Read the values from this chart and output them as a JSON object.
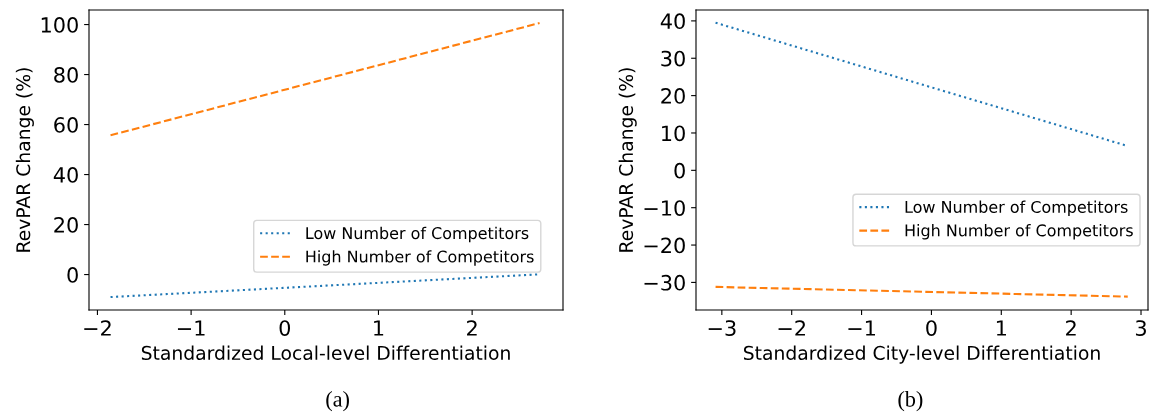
{
  "chart_data": [
    {
      "type": "line",
      "xlabel": "Standardized Local-level Differentiation",
      "ylabel": "RevPAR Change (%)",
      "annotations": [
        "(a)"
      ],
      "xlim": [
        -2.09,
        2.97
      ],
      "ylim": [
        -14.2,
        105.8
      ],
      "xticks": [
        -2,
        -1,
        0,
        1,
        2
      ],
      "yticks": [
        0,
        20,
        40,
        60,
        80,
        100
      ],
      "legend": "lower right",
      "series": [
        {
          "name": "Low Number of Competitors",
          "color": "#1f77b4",
          "line_style": "dotted",
          "x": [
            -1.86,
            2.72
          ],
          "values": [
            -9.0,
            0.1
          ]
        },
        {
          "name": "High Number of Competitors",
          "color": "#ff7f0e",
          "line_style": "dashed",
          "x": [
            -1.86,
            2.72
          ],
          "values": [
            55.7,
            100.6
          ]
        }
      ]
    },
    {
      "type": "line",
      "xlabel": "Standardized City-level Differentiation",
      "ylabel": "RevPAR Change (%)",
      "annotations": [
        "(b)"
      ],
      "xlim": [
        -3.37,
        3.1
      ],
      "ylim": [
        -37.4,
        42.9
      ],
      "xticks": [
        -3,
        -2,
        -1,
        0,
        1,
        2,
        3
      ],
      "yticks": [
        -30,
        -20,
        -10,
        0,
        10,
        20,
        30,
        40
      ],
      "legend": "center right",
      "series": [
        {
          "name": "Low Number of Competitors",
          "color": "#1f77b4",
          "line_style": "dotted",
          "x": [
            -3.09,
            2.81
          ],
          "values": [
            39.5,
            6.5
          ]
        },
        {
          "name": "High Number of Competitors",
          "color": "#ff7f0e",
          "line_style": "dashed",
          "x": [
            -3.09,
            2.81
          ],
          "values": [
            -31.2,
            -33.8
          ]
        }
      ]
    }
  ]
}
